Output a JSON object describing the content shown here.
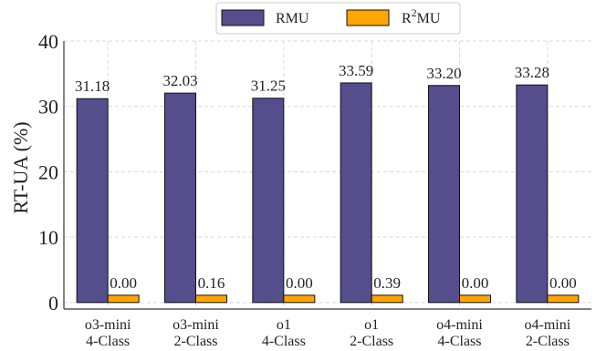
{
  "chart_data": {
    "type": "bar",
    "categories": [
      [
        "o3-mini",
        "4-Class"
      ],
      [
        "o3-mini",
        "2-Class"
      ],
      [
        "o1",
        "4-Class"
      ],
      [
        "o1",
        "2-Class"
      ],
      [
        "o4-mini",
        "4-Class"
      ],
      [
        "o4-mini",
        "2-Class"
      ]
    ],
    "series": [
      {
        "name": "RMU",
        "color": "#564d8c",
        "values": [
          31.18,
          32.03,
          31.25,
          33.59,
          33.2,
          33.28
        ],
        "labels": [
          "31.18",
          "32.03",
          "31.25",
          "33.59",
          "33.20",
          "33.28"
        ]
      },
      {
        "name": "R2MU",
        "legend_base": "R",
        "legend_sup": "2",
        "legend_rest": "MU",
        "color": "#ffa500",
        "values": [
          0.0,
          0.16,
          0.0,
          0.39,
          0.0,
          0.0
        ],
        "labels": [
          "0.00",
          "0.16",
          "0.00",
          "0.39",
          "0.00",
          "0.00"
        ]
      }
    ],
    "ylabel": "RT-UA (%)",
    "ylim": [
      -1,
      40
    ],
    "yticks": [
      0,
      10,
      20,
      30,
      40
    ],
    "grid": true,
    "legend_position": "top-center"
  }
}
